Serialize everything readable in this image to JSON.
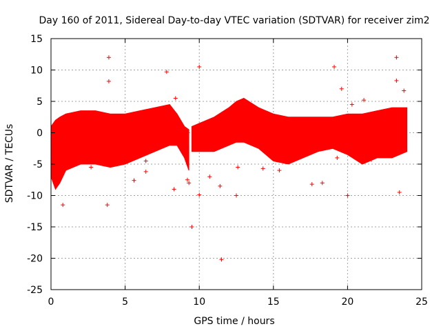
{
  "chart_data": {
    "type": "scatter",
    "title": "Day 160 of 2011, Sidereal Day-to-day VTEC variation (SDTVAR) for receiver zim2",
    "xlabel": "GPS time / hours",
    "ylabel": "SDTVAR / TECUs",
    "xlim": [
      0,
      25
    ],
    "ylim": [
      -25,
      15
    ],
    "xticks": [
      0,
      5,
      10,
      15,
      20,
      25
    ],
    "yticks": [
      -25,
      -20,
      -15,
      -10,
      -5,
      0,
      5,
      10,
      15
    ],
    "grid": true,
    "marker": "+",
    "color": "#ff0000",
    "series": [
      {
        "name": "SDTVAR",
        "band": {
          "x": [
            0,
            0.3,
            0.6,
            1,
            2,
            3,
            4,
            5,
            6,
            7,
            8,
            8.5,
            9,
            9.3
          ],
          "upper": [
            1,
            2,
            2.5,
            3,
            3.5,
            3.5,
            3,
            3,
            3.5,
            4,
            4.5,
            3,
            1,
            0.5
          ],
          "lower": [
            -7,
            -9,
            -8,
            -6,
            -5,
            -5,
            -5.5,
            -5,
            -4,
            -3,
            -2,
            -2,
            -4,
            -6
          ]
        },
        "band2": {
          "x": [
            9.5,
            10,
            11,
            12,
            12.5,
            13,
            14,
            15,
            16,
            17,
            18,
            19,
            20,
            21,
            22,
            23,
            24
          ],
          "upper": [
            1,
            1.5,
            2.5,
            4,
            5,
            5.5,
            4,
            3,
            2.5,
            2.5,
            2.5,
            2.5,
            3,
            3,
            3.5,
            4,
            4
          ],
          "lower": [
            -3,
            -3,
            -3,
            -2,
            -1.5,
            -1.5,
            -2.5,
            -4.5,
            -5,
            -4,
            -3,
            -2.5,
            -3.5,
            -5,
            -4,
            -4,
            -3
          ]
        },
        "outliers": [
          {
            "x": 3.9,
            "y": 12
          },
          {
            "x": 3.9,
            "y": 8.2
          },
          {
            "x": 3.8,
            "y": -11.5
          },
          {
            "x": 0.8,
            "y": -11.5
          },
          {
            "x": 9.5,
            "y": -15
          },
          {
            "x": 11.5,
            "y": -20.2
          },
          {
            "x": 11.4,
            "y": -8.5
          },
          {
            "x": 12.5,
            "y": -10
          },
          {
            "x": 12.6,
            "y": -5.5
          },
          {
            "x": 10,
            "y": 10.5
          },
          {
            "x": 10,
            "y": -9.9
          },
          {
            "x": 19.1,
            "y": 10.5
          },
          {
            "x": 23.3,
            "y": 12
          },
          {
            "x": 23.5,
            "y": -9.5
          },
          {
            "x": 23.3,
            "y": 8.3
          },
          {
            "x": 20,
            "y": -10
          },
          {
            "x": 17.6,
            "y": -8.2
          },
          {
            "x": 18.3,
            "y": -8
          },
          {
            "x": 15.4,
            "y": -6
          },
          {
            "x": 5.6,
            "y": -7.6
          },
          {
            "x": 6.4,
            "y": -4.5
          },
          {
            "x": 6.4,
            "y": -6.2
          },
          {
            "x": 8.3,
            "y": -9
          },
          {
            "x": 9.2,
            "y": -7.5
          },
          {
            "x": 9.3,
            "y": -8
          },
          {
            "x": 10.7,
            "y": -7
          },
          {
            "x": 7.8,
            "y": 9.7
          },
          {
            "x": 8.4,
            "y": 5.5
          },
          {
            "x": 19.6,
            "y": 7
          },
          {
            "x": 19.3,
            "y": -4
          },
          {
            "x": 20.3,
            "y": 4.5
          },
          {
            "x": 21.1,
            "y": 5.2
          },
          {
            "x": 23.8,
            "y": 6.7
          },
          {
            "x": 14.3,
            "y": -5.7
          },
          {
            "x": 2.7,
            "y": -5.5
          },
          {
            "x": 21.6,
            "y": -4.3
          }
        ]
      }
    ]
  }
}
